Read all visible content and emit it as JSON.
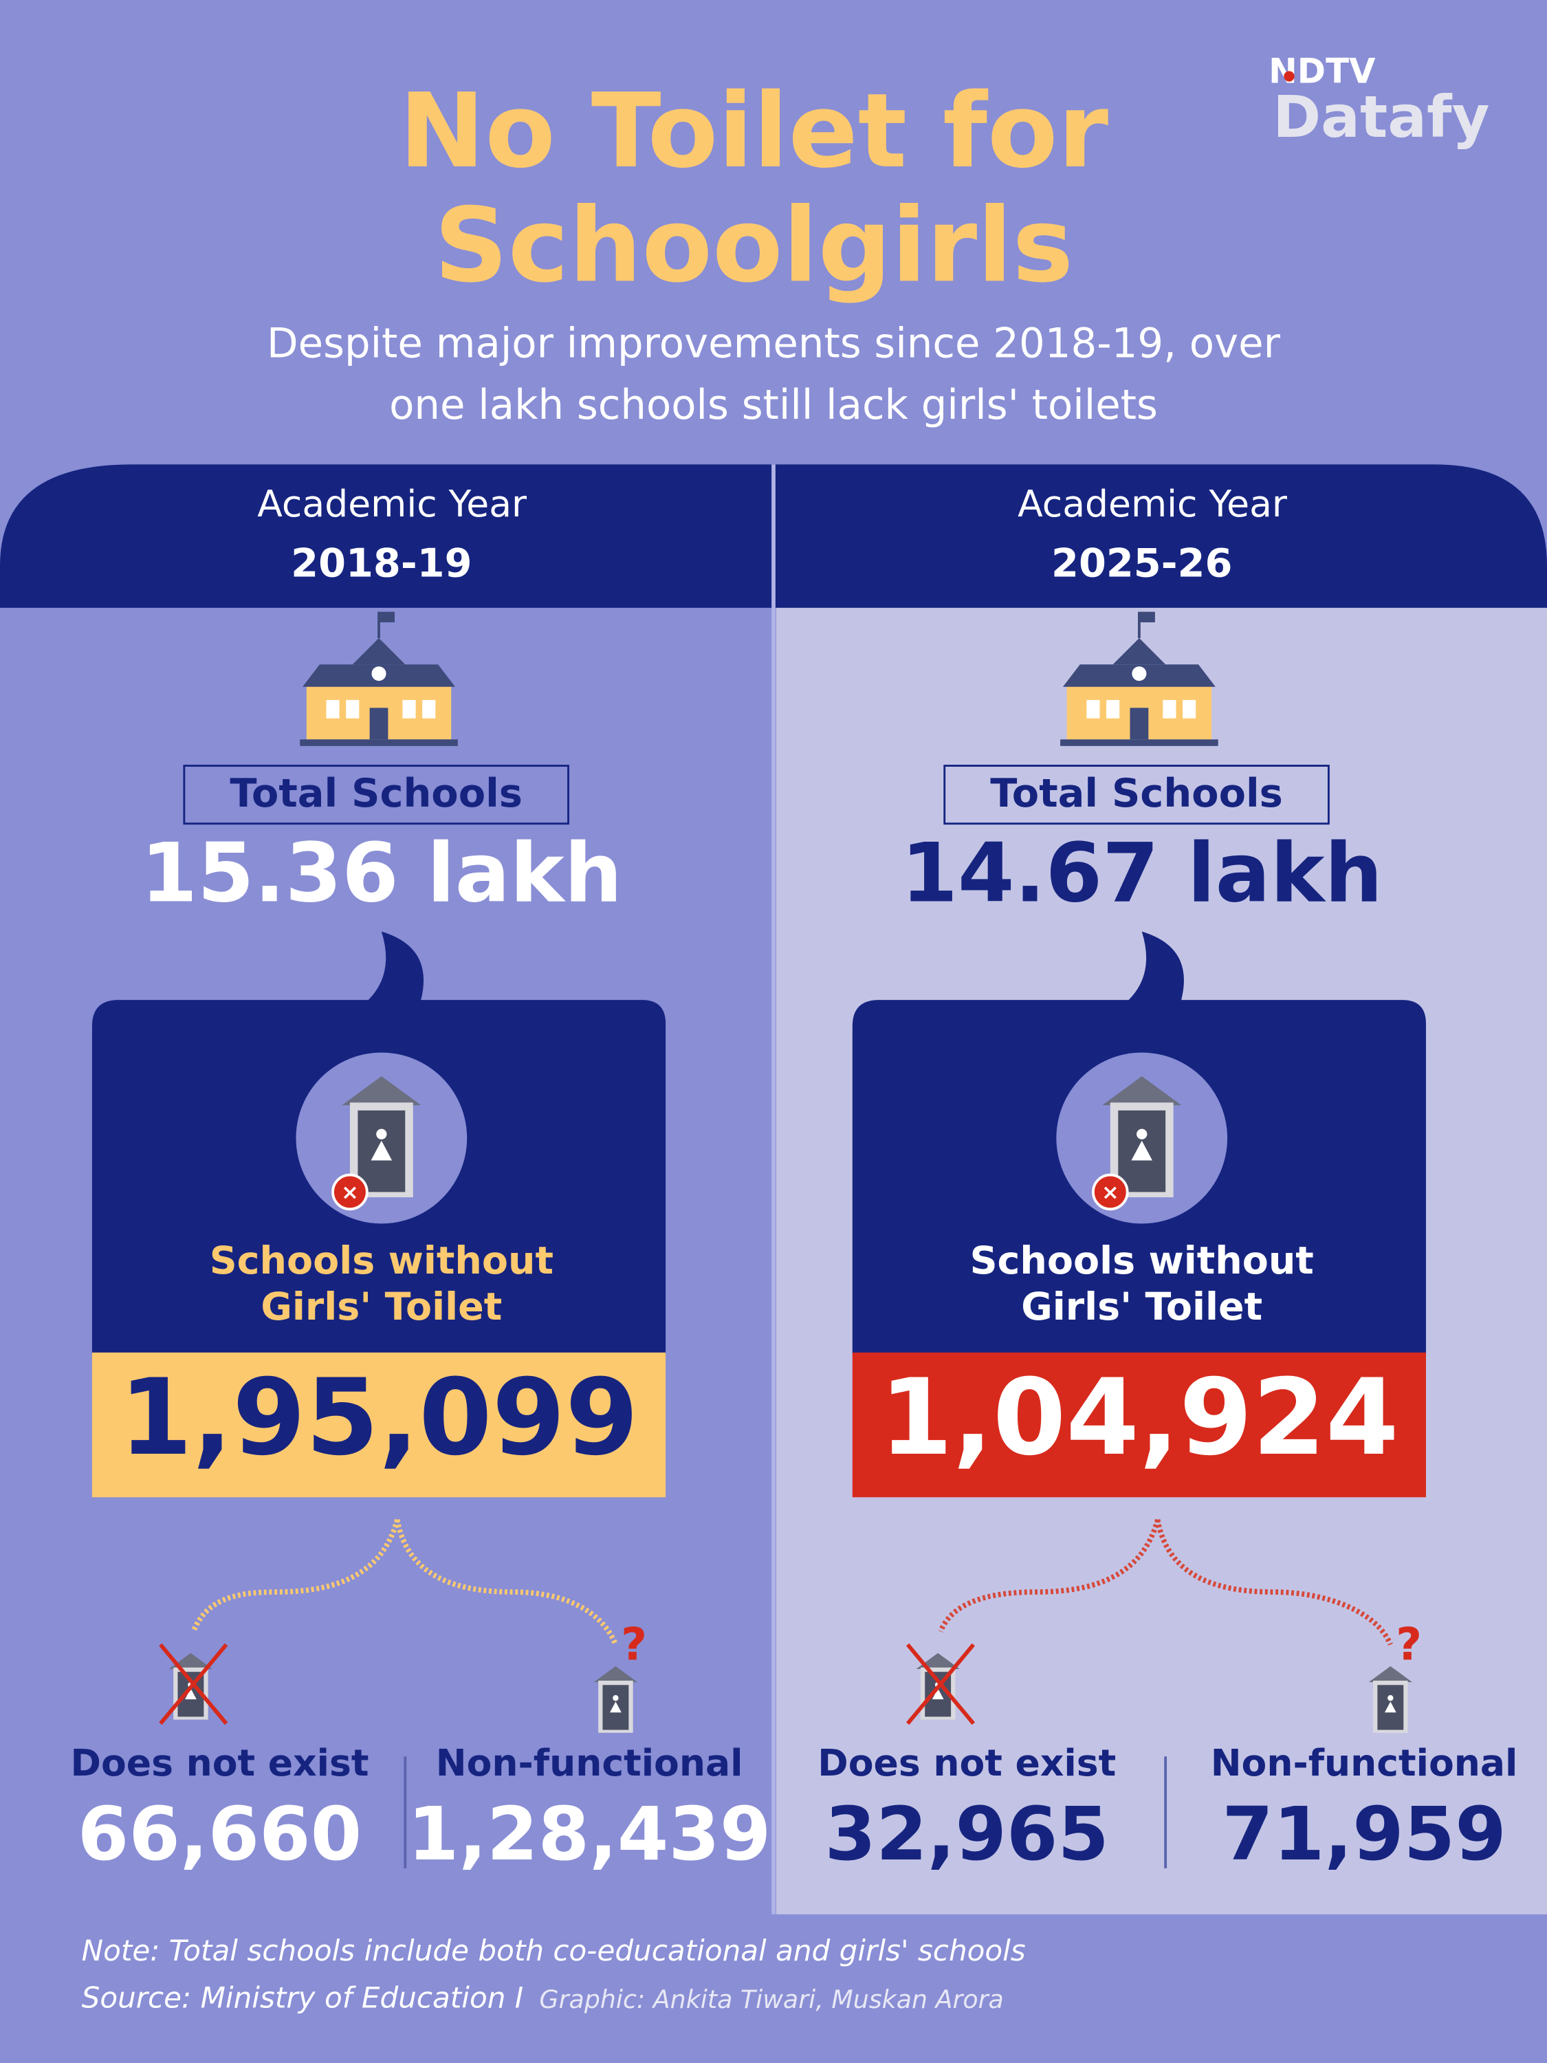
{
  "header": {
    "logo_top": "NDTV",
    "logo_bottom": "Datafy",
    "title_lines": [
      "No Toilet for",
      "Schoolgirls"
    ],
    "subtitle_lines": [
      "Despite major improvements since 2018-19, over",
      "one lakh schools still lack girls' toilets"
    ]
  },
  "panels": [
    {
      "label": "Academic Year",
      "year": "2018-19",
      "total_label": "Total Schools",
      "total": "15.36 lakh",
      "without_lines": [
        "Schools without",
        "Girls' Toilet"
      ],
      "without": "1,95,099",
      "split": [
        {
          "label": "Does not exist",
          "value": "66,660"
        },
        {
          "label": "Non-functional",
          "value": "1,28,439"
        }
      ]
    },
    {
      "label": "Academic Year",
      "year": "2025-26",
      "total_label": "Total Schools",
      "total": "14.67 lakh",
      "without_lines": [
        "Schools without",
        "Girls' Toilet"
      ],
      "without": "1,04,924",
      "split": [
        {
          "label": "Does not exist",
          "value": "32,965"
        },
        {
          "label": "Non-functional",
          "value": "71,959"
        }
      ]
    }
  ],
  "footer": {
    "note": "Note: Total schools include both co-educational and girls' schools",
    "source": "Source: Ministry of Education I",
    "credit": "Graphic: Ankita Tiwari, Muskan Arora"
  }
}
